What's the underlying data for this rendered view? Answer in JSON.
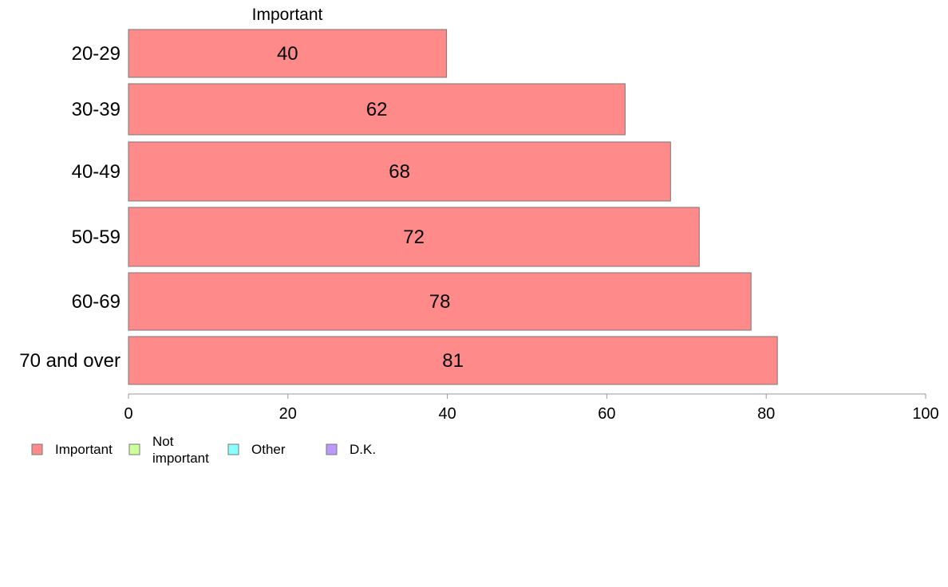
{
  "chart_data": {
    "type": "bar",
    "orientation": "horizontal",
    "column_header": "Important",
    "categories": [
      "20-29",
      "30-39",
      "40-49",
      "50-59",
      "60-69",
      "70 and over"
    ],
    "series": [
      {
        "name": "Important",
        "values": [
          39.9,
          62.3,
          68,
          71.6,
          78.1,
          81.4
        ],
        "labels": [
          "40",
          "62",
          "68",
          "72",
          "78",
          "81"
        ]
      }
    ],
    "xlim": [
      0,
      100
    ],
    "xticks": [
      "0",
      "20",
      "40",
      "60",
      "80",
      "100"
    ],
    "legend": {
      "placement": "bottom-left",
      "items": [
        {
          "label": "Important",
          "color": "#ff8a8a"
        },
        {
          "label": "Not important",
          "color": "#ccff99"
        },
        {
          "label": "Other",
          "color": "#88ffff"
        },
        {
          "label": "D.K.",
          "color": "#bb99ff"
        }
      ]
    },
    "bar_color": "#ff8a8a",
    "grid": false
  }
}
